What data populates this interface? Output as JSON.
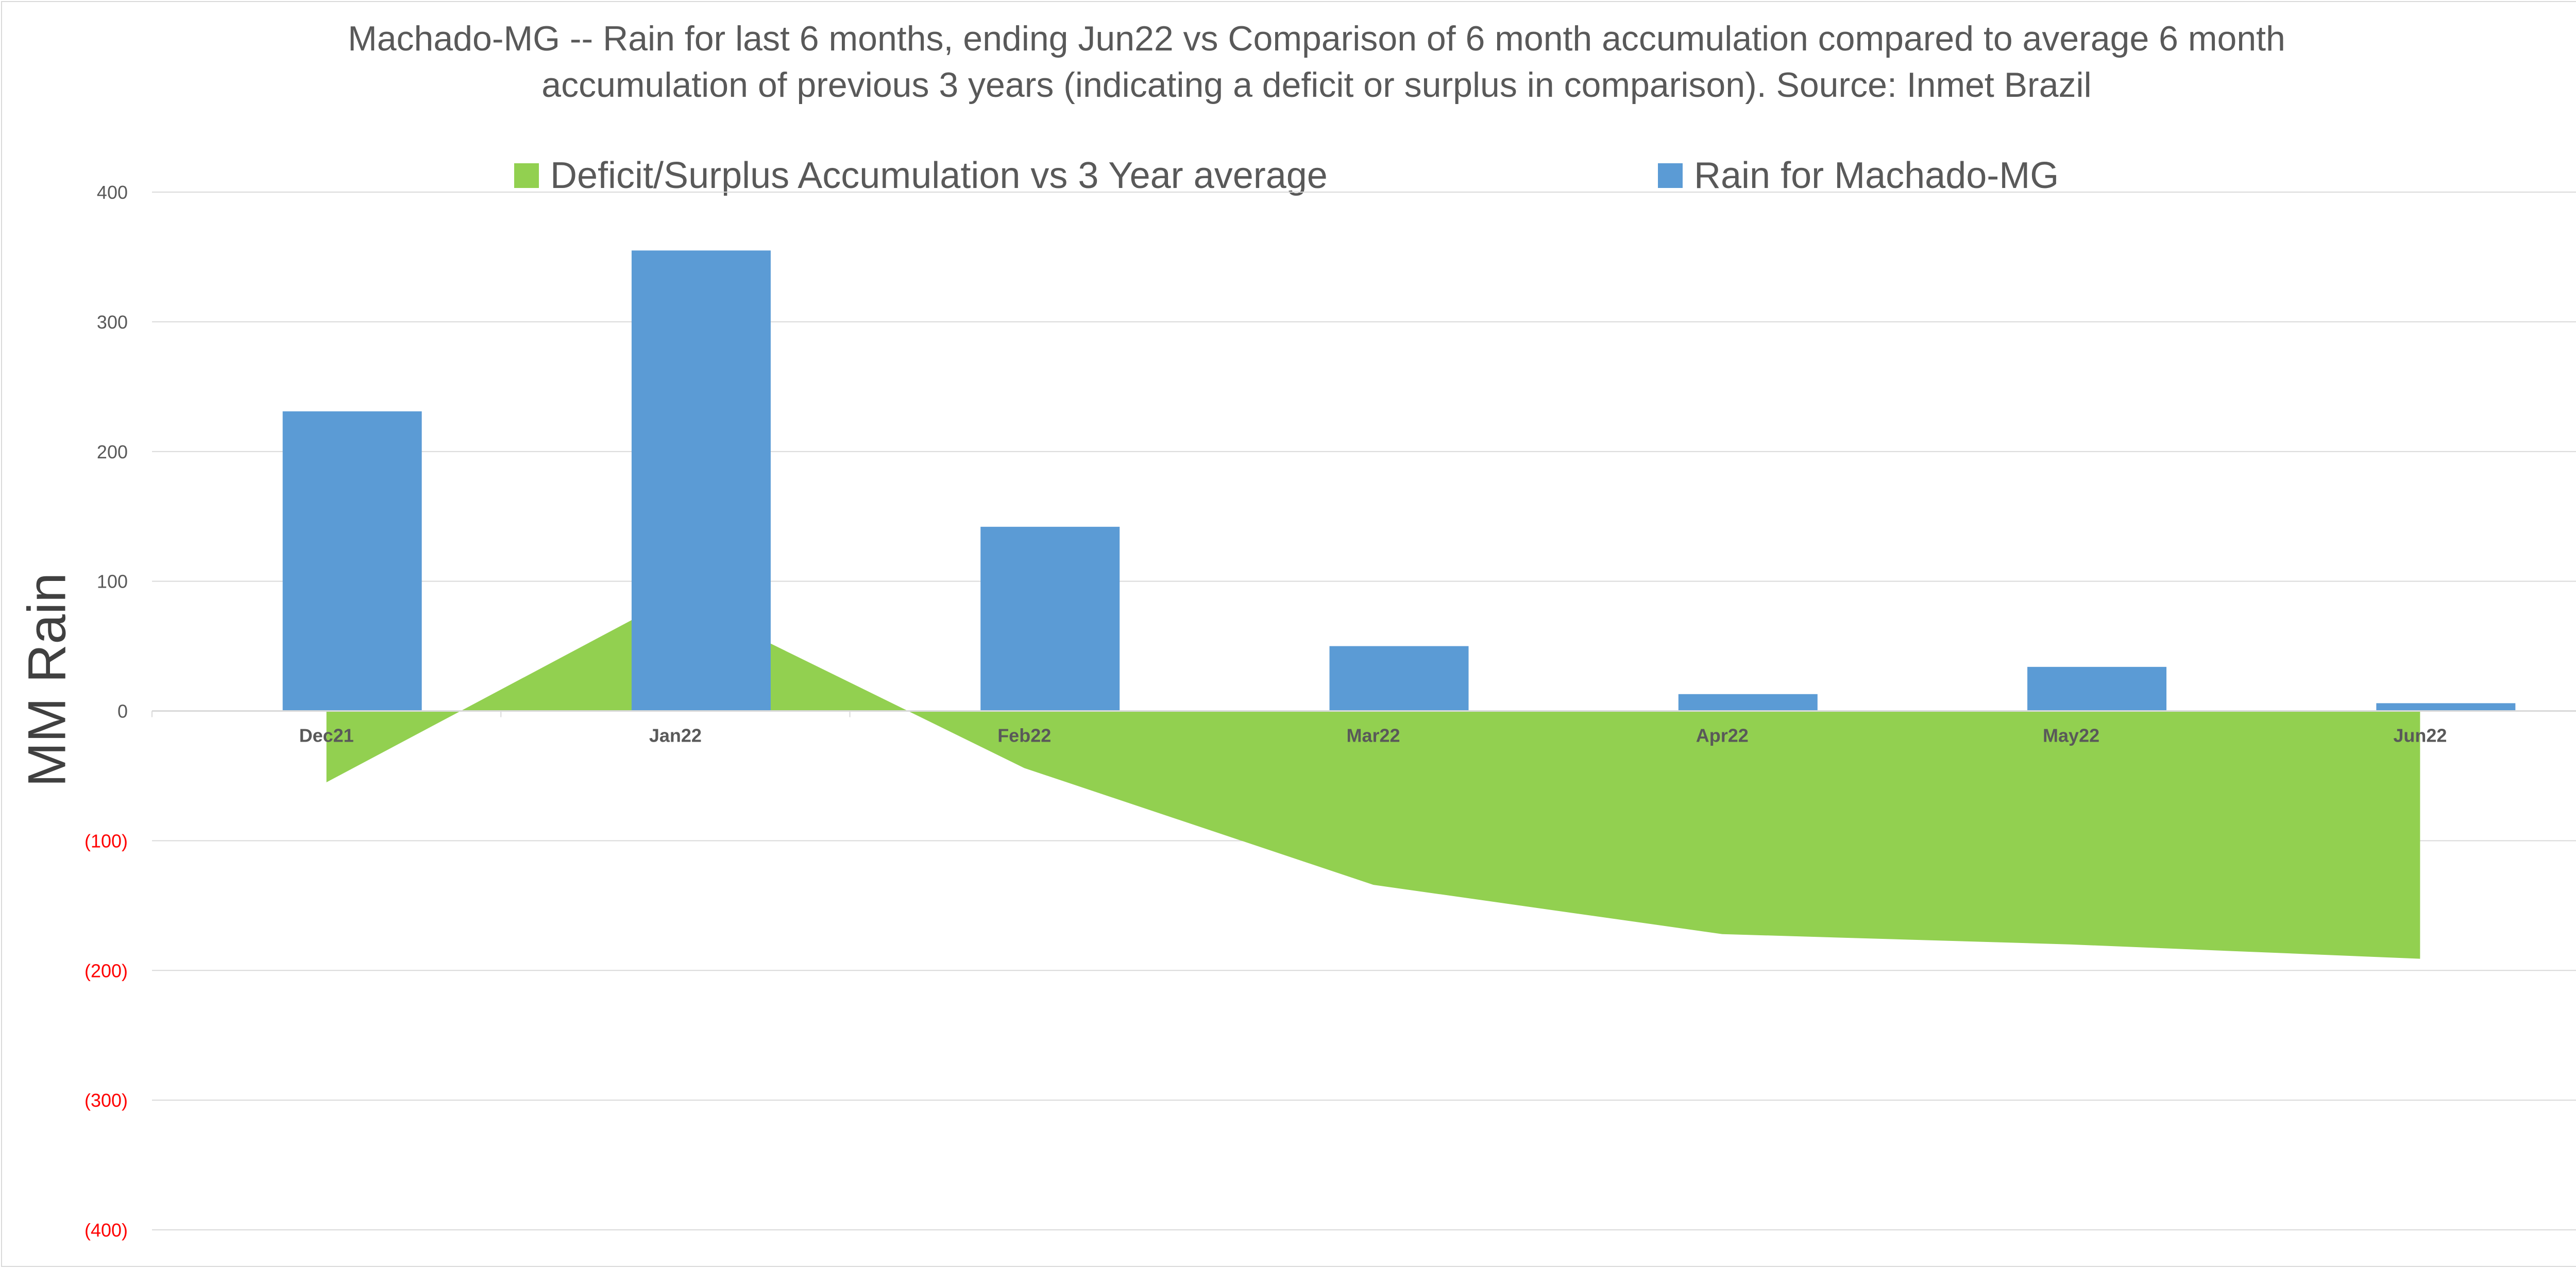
{
  "chart_data": {
    "type": "bar",
    "title_lines": [
      "Machado-MG -- Rain for last 6 months, ending Jun22  vs Comparison of 6 month accumulation compared to average 6 month",
      "accumulation of previous 3 years  (indicating a deficit or surplus in comparison). Source: Inmet Brazil"
    ],
    "ylabel": "MM Rain",
    "categories": [
      "Dec21",
      "Jan22",
      "Feb22",
      "Mar22",
      "Apr22",
      "May22",
      "Jun22"
    ],
    "ylim": [
      -400,
      400
    ],
    "yticks": [
      400,
      300,
      200,
      100,
      0,
      -100,
      -200,
      -300,
      -400
    ],
    "ytick_labels": [
      "400",
      "300",
      "200",
      "100",
      "0",
      "(100)",
      "(200)",
      "(300)",
      "(400)"
    ],
    "grid": true,
    "legend_position": "top",
    "series": [
      {
        "name": "Deficit/Surplus Accumulation vs 3 Year average",
        "type": "area",
        "color": "#92d050",
        "values": [
          -55,
          88,
          -44,
          -134,
          -172,
          -180,
          -191
        ]
      },
      {
        "name": "Rain for Machado-MG",
        "type": "bar",
        "color": "#5b9bd5",
        "values": [
          231,
          355,
          142,
          50,
          13,
          34,
          6
        ]
      }
    ],
    "colors": {
      "positive_tick": "#595959",
      "negative_tick": "#ff0000",
      "grid": "#d9d9d9"
    }
  }
}
